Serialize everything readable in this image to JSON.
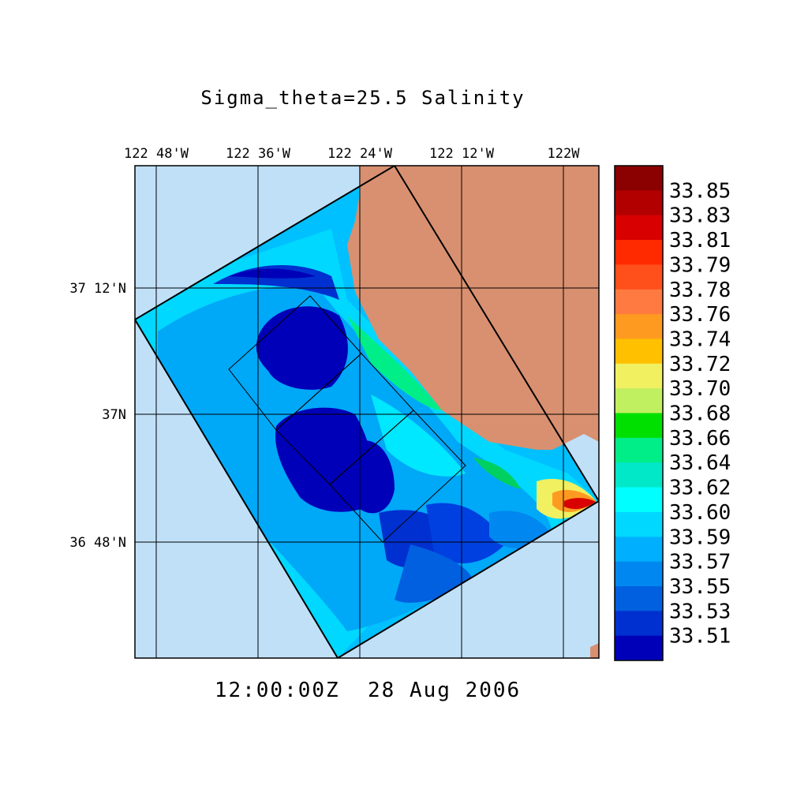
{
  "title": "Sigma_theta=25.5 Salinity",
  "timestamp": "12:00:00Z  28 Aug 2006",
  "lon_labels": [
    "122 48'W",
    "122 36'W",
    "122 24'W",
    "122 12'W",
    "122W"
  ],
  "lat_labels": [
    "37 12'N",
    "37N",
    "36 48'N"
  ],
  "colorbar": {
    "levels": [
      "33.85",
      "33.83",
      "33.81",
      "33.79",
      "33.78",
      "33.76",
      "33.74",
      "33.72",
      "33.70",
      "33.68",
      "33.66",
      "33.64",
      "33.62",
      "33.60",
      "33.59",
      "33.57",
      "33.55",
      "33.53",
      "33.51"
    ],
    "colors": [
      "#8b0000",
      "#b20000",
      "#d80000",
      "#ff2a00",
      "#ff4f1a",
      "#ff7a40",
      "#ff9a20",
      "#ffc000",
      "#f0f060",
      "#c0f060",
      "#00e000",
      "#00ee88",
      "#00e8c8",
      "#00ffff",
      "#00d8ff",
      "#00b0ff",
      "#0088f0",
      "#0060e0",
      "#0030d0",
      "#0000b8"
    ]
  },
  "colors": {
    "ocean": "#c0e0f8",
    "land": "#d89070",
    "salinity_mid": "#00c0ff",
    "salinity_low": "#0000b8"
  }
}
